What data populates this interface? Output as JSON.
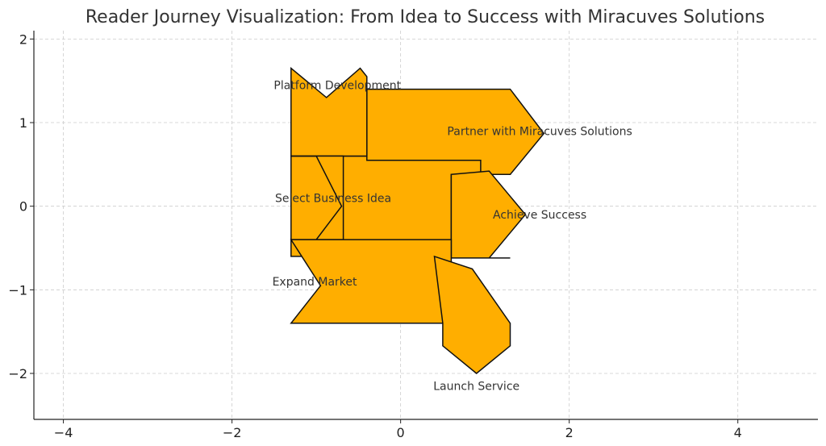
{
  "chart_data": {
    "type": "diagram",
    "title": "Reader Journey Visualization: From Idea to Success with Miracuves Solutions",
    "xlabel": "",
    "ylabel": "",
    "xlim": [
      -4.35,
      4.95
    ],
    "ylim": [
      -2.55,
      2.1
    ],
    "x_ticks": [
      -4,
      -2,
      0,
      2,
      4
    ],
    "y_ticks": [
      -2,
      -1,
      0,
      1,
      2
    ],
    "x_tick_labels": [
      "−4",
      "−2",
      "0",
      "2",
      "4"
    ],
    "y_tick_labels": [
      "−2",
      "−1",
      "0",
      "1",
      "2"
    ],
    "grid": true,
    "colors": {
      "fill": "#ffae00",
      "edge": "#111111",
      "grid": "#cccccc"
    },
    "labels": [
      {
        "text": "Platform Development",
        "x": -0.75,
        "y": 1.45
      },
      {
        "text": "Partner with Miracuves Solutions",
        "x": 1.65,
        "y": 0.9
      },
      {
        "text": "Select Business Idea",
        "x": -0.8,
        "y": 0.1
      },
      {
        "text": "Achieve Success",
        "x": 1.65,
        "y": -0.1
      },
      {
        "text": "Expand Market",
        "x": -1.02,
        "y": -0.9
      },
      {
        "text": "Launch Service",
        "x": 0.9,
        "y": -2.15
      }
    ],
    "shapes": [
      {
        "name": "mid-band",
        "points": [
          [
            -0.4,
            1.32
          ],
          [
            1.3,
            1.32
          ],
          [
            1.3,
            0.38
          ],
          [
            0.6,
            0.38
          ],
          [
            0.6,
            -0.6
          ],
          [
            -1.3,
            -0.6
          ],
          [
            -1.3,
            0.6
          ],
          [
            -0.4,
            0.6
          ]
        ]
      },
      {
        "name": "partner-arrow",
        "points": [
          [
            -0.4,
            1.4
          ],
          [
            1.3,
            1.4
          ],
          [
            1.7,
            0.87
          ],
          [
            1.3,
            0.38
          ],
          [
            0.95,
            0.38
          ],
          [
            0.95,
            0.55
          ],
          [
            -0.4,
            0.55
          ]
        ]
      },
      {
        "name": "platform-wedge",
        "points": [
          [
            -1.3,
            1.65
          ],
          [
            -0.88,
            1.3
          ],
          [
            -0.48,
            1.65
          ],
          [
            -0.4,
            1.55
          ],
          [
            -0.4,
            0.6
          ],
          [
            -0.55,
            0.6
          ],
          [
            -1.3,
            0.6
          ]
        ]
      },
      {
        "name": "select-arrow",
        "points": [
          [
            -1.3,
            0.6
          ],
          [
            -0.68,
            0.6
          ],
          [
            -0.68,
            -0.4
          ],
          [
            -1.3,
            -0.4
          ],
          [
            -1.0,
            -0.4
          ],
          [
            -0.7,
            0.0
          ],
          [
            -1.0,
            0.6
          ]
        ]
      },
      {
        "name": "achieve-arrow",
        "points": [
          [
            0.6,
            0.38
          ],
          [
            1.05,
            0.42
          ],
          [
            1.48,
            -0.1
          ],
          [
            1.05,
            -0.62
          ],
          [
            1.3,
            -0.62
          ],
          [
            0.6,
            -0.62
          ]
        ]
      },
      {
        "name": "expand-arrow",
        "points": [
          [
            -1.3,
            -0.4
          ],
          [
            0.6,
            -0.4
          ],
          [
            0.6,
            -1.4
          ],
          [
            -1.3,
            -1.4
          ],
          [
            -0.95,
            -0.95
          ]
        ]
      },
      {
        "name": "launch-arrow",
        "points": [
          [
            0.4,
            -0.6
          ],
          [
            0.5,
            -1.4
          ],
          [
            0.5,
            -1.58
          ],
          [
            0.5,
            -1.67
          ],
          [
            0.9,
            -2.0
          ],
          [
            1.3,
            -1.67
          ],
          [
            1.3,
            -1.4
          ],
          [
            0.85,
            -0.75
          ]
        ]
      }
    ]
  }
}
